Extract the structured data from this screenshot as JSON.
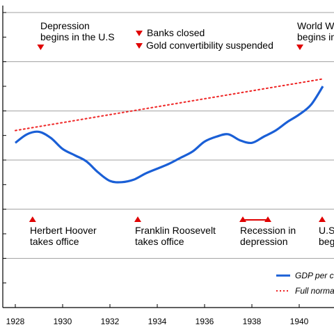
{
  "chart_data": {
    "type": "line",
    "x_range": [
      1928,
      1942
    ],
    "y_range": [
      0,
      12
    ],
    "x_ticks": [
      "1928",
      "1930",
      "1932",
      "1934",
      "1936",
      "1938",
      "1940"
    ],
    "grid": "horizontal",
    "legend_position": "bottom-right",
    "series": [
      {
        "name": "GDP per c",
        "style": "solid",
        "color": "#1a5fd6",
        "points": [
          [
            1928.0,
            6.7
          ],
          [
            1928.5,
            7.05
          ],
          [
            1929.0,
            7.15
          ],
          [
            1929.5,
            6.9
          ],
          [
            1930.0,
            6.45
          ],
          [
            1930.5,
            6.2
          ],
          [
            1931.0,
            5.95
          ],
          [
            1931.5,
            5.5
          ],
          [
            1932.0,
            5.15
          ],
          [
            1932.5,
            5.1
          ],
          [
            1933.0,
            5.2
          ],
          [
            1933.5,
            5.45
          ],
          [
            1934.0,
            5.65
          ],
          [
            1934.5,
            5.85
          ],
          [
            1935.0,
            6.1
          ],
          [
            1935.5,
            6.35
          ],
          [
            1936.0,
            6.75
          ],
          [
            1936.5,
            6.95
          ],
          [
            1937.0,
            7.05
          ],
          [
            1937.5,
            6.8
          ],
          [
            1938.0,
            6.7
          ],
          [
            1938.5,
            6.95
          ],
          [
            1939.0,
            7.2
          ],
          [
            1939.5,
            7.55
          ],
          [
            1940.0,
            7.85
          ],
          [
            1940.5,
            8.25
          ],
          [
            1941.0,
            9.0
          ]
        ]
      },
      {
        "name": "Full norma",
        "style": "dotted",
        "color": "#ee2222",
        "points": [
          [
            1928.0,
            7.2
          ],
          [
            1941.0,
            9.3
          ]
        ]
      }
    ],
    "annotations": [
      {
        "id": "depression",
        "lines": [
          "Depression",
          "begins in the U.S"
        ],
        "year": 1929.1,
        "marker": "down"
      },
      {
        "id": "banks",
        "lines": [
          "Banks closed"
        ],
        "year": 1933.0,
        "marker": "down"
      },
      {
        "id": "gold",
        "lines": [
          "Gold convertibility suspended"
        ],
        "year": 1933.0,
        "marker": "down"
      },
      {
        "id": "ww2",
        "lines": [
          "World W",
          "begins in"
        ],
        "year": 1939.1,
        "marker": "down"
      },
      {
        "id": "hoover",
        "lines": [
          "Herbert Hoover",
          "takes office"
        ],
        "year": 1928.7,
        "marker": "up"
      },
      {
        "id": "roosevelt",
        "lines": [
          "Franklin Roosevelt",
          "takes office"
        ],
        "year": 1932.8,
        "marker": "up"
      },
      {
        "id": "recession",
        "lines": [
          "Recession in",
          "depression"
        ],
        "year_start": 1936.8,
        "year_end": 1937.8,
        "marker": "range-up"
      },
      {
        "id": "us-enters",
        "lines": [
          "U.S",
          "beg"
        ],
        "year": 1940.7,
        "marker": "up"
      }
    ]
  }
}
